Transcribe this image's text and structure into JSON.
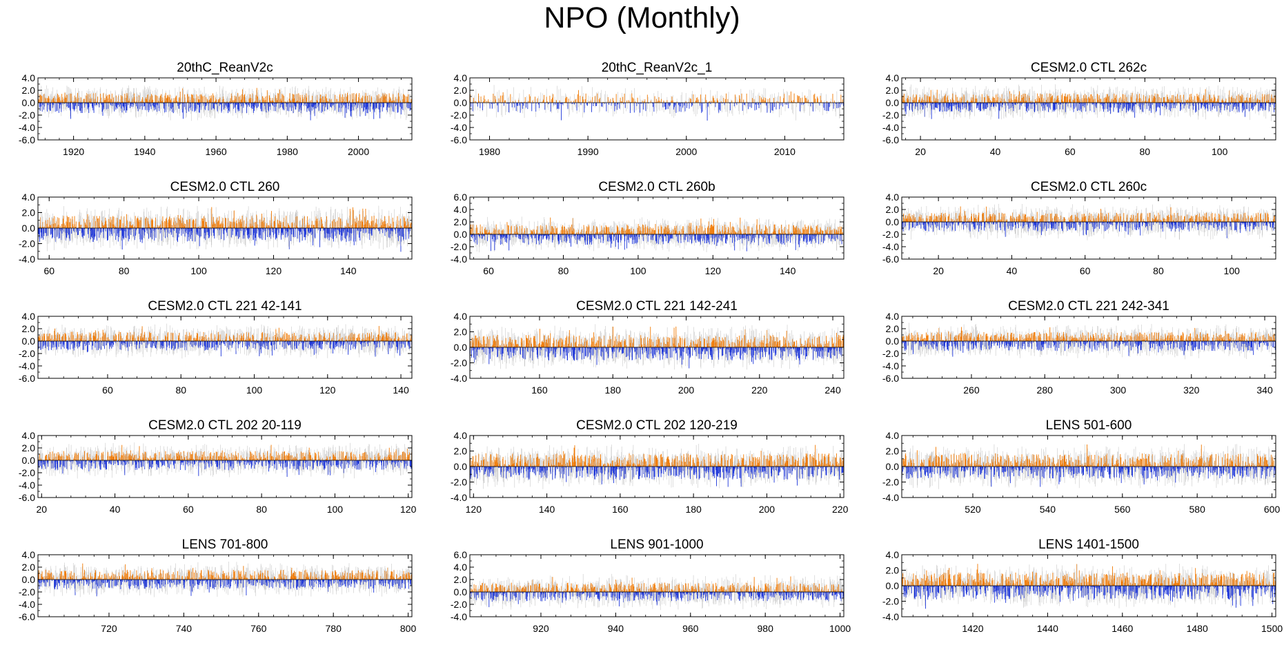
{
  "title": "NPO (Monthly)",
  "colors": {
    "positive": "#f07800",
    "negative": "#1a33d9",
    "unfiltered": "#c8c8c8",
    "frame": "#000000"
  },
  "chart_data": [
    {
      "type": "bar",
      "title": "20thC_ReanV2c",
      "xlim": [
        1910,
        2015
      ],
      "xticks": [
        "1920",
        "1940",
        "1960",
        "1980",
        "2000"
      ],
      "xtickvals": [
        1920,
        1940,
        1960,
        1980,
        2000
      ],
      "ylim": [
        -6,
        4
      ],
      "yticks": [
        "4.0",
        "2.0",
        "0.0",
        "-2.0",
        "-4.0",
        "-6.0"
      ],
      "ytickvals": [
        4,
        2,
        0,
        -2,
        -4,
        -6
      ],
      "months": 1260,
      "pos_amp": 1.6,
      "neg_amp": 1.7
    },
    {
      "type": "bar",
      "title": "20thC_ReanV2c_1",
      "xlim": [
        1978,
        2016
      ],
      "xticks": [
        "1980",
        "1990",
        "2000",
        "2010"
      ],
      "xtickvals": [
        1980,
        1990,
        2000,
        2010
      ],
      "ylim": [
        -6,
        4
      ],
      "yticks": [
        "4.0",
        "2.0",
        "0.0",
        "-2.0",
        "-4.0",
        "-6.0"
      ],
      "ytickvals": [
        4,
        2,
        0,
        -2,
        -4,
        -6
      ],
      "months": 456,
      "pos_amp": 1.5,
      "neg_amp": 1.7
    },
    {
      "type": "bar",
      "title": "CESM2.0 CTL 262c",
      "xlim": [
        15,
        115
      ],
      "xticks": [
        "20",
        "40",
        "60",
        "80",
        "100"
      ],
      "xtickvals": [
        20,
        40,
        60,
        80,
        100
      ],
      "ylim": [
        -6,
        4
      ],
      "yticks": [
        "4.0",
        "2.0",
        "0.0",
        "-2.0",
        "-4.0",
        "-6.0"
      ],
      "ytickvals": [
        4,
        2,
        0,
        -2,
        -4,
        -6
      ],
      "months": 1200,
      "pos_amp": 1.5,
      "neg_amp": 1.6
    },
    {
      "type": "bar",
      "title": "CESM2.0 CTL 260",
      "xlim": [
        57,
        157
      ],
      "xticks": [
        "60",
        "80",
        "100",
        "120",
        "140"
      ],
      "xtickvals": [
        60,
        80,
        100,
        120,
        140
      ],
      "ylim": [
        -4,
        4
      ],
      "yticks": [
        "4.0",
        "2.0",
        "0.0",
        "-2.0",
        "-4.0"
      ],
      "ytickvals": [
        4,
        2,
        0,
        -2,
        -4
      ],
      "months": 1200,
      "pos_amp": 1.6,
      "neg_amp": 1.8
    },
    {
      "type": "bar",
      "title": "CESM2.0 CTL 260b",
      "xlim": [
        55,
        155
      ],
      "xticks": [
        "60",
        "80",
        "100",
        "120",
        "140"
      ],
      "xtickvals": [
        60,
        80,
        100,
        120,
        140
      ],
      "ylim": [
        -4,
        6
      ],
      "yticks": [
        "6.0",
        "4.0",
        "2.0",
        "0.0",
        "-2.0",
        "-4.0"
      ],
      "ytickvals": [
        6,
        4,
        2,
        0,
        -2,
        -4
      ],
      "months": 1200,
      "pos_amp": 1.6,
      "neg_amp": 1.7
    },
    {
      "type": "bar",
      "title": "CESM2.0 CTL 260c",
      "xlim": [
        10,
        112
      ],
      "xticks": [
        "20",
        "40",
        "60",
        "80",
        "100"
      ],
      "xtickvals": [
        20,
        40,
        60,
        80,
        100
      ],
      "ylim": [
        -6,
        4
      ],
      "yticks": [
        "4.0",
        "2.0",
        "0.0",
        "-2.0",
        "-4.0",
        "-6.0"
      ],
      "ytickvals": [
        4,
        2,
        0,
        -2,
        -4,
        -6
      ],
      "months": 1200,
      "pos_amp": 1.5,
      "neg_amp": 1.6
    },
    {
      "type": "bar",
      "title": "CESM2.0 CTL 221 42-141",
      "xlim": [
        41,
        143
      ],
      "xticks": [
        "60",
        "80",
        "100",
        "120",
        "140"
      ],
      "xtickvals": [
        60,
        80,
        100,
        120,
        140
      ],
      "ylim": [
        -6,
        4
      ],
      "yticks": [
        "4.0",
        "2.0",
        "0.0",
        "-2.0",
        "-4.0",
        "-6.0"
      ],
      "ytickvals": [
        4,
        2,
        0,
        -2,
        -4,
        -6
      ],
      "months": 1200,
      "pos_amp": 1.5,
      "neg_amp": 1.5
    },
    {
      "type": "bar",
      "title": "CESM2.0 CTL 221 142-241",
      "xlim": [
        141,
        243
      ],
      "xticks": [
        "160",
        "180",
        "200",
        "220",
        "240"
      ],
      "xtickvals": [
        160,
        180,
        200,
        220,
        240
      ],
      "ylim": [
        -4,
        4
      ],
      "yticks": [
        "4.0",
        "2.0",
        "0.0",
        "-2.0",
        "-4.0"
      ],
      "ytickvals": [
        4,
        2,
        0,
        -2,
        -4
      ],
      "months": 1200,
      "pos_amp": 1.6,
      "neg_amp": 1.7
    },
    {
      "type": "bar",
      "title": "CESM2.0 CTL 221 242-341",
      "xlim": [
        241,
        343
      ],
      "xticks": [
        "260",
        "280",
        "300",
        "320",
        "340"
      ],
      "xtickvals": [
        260,
        280,
        300,
        320,
        340
      ],
      "ylim": [
        -6,
        4
      ],
      "yticks": [
        "4.0",
        "2.0",
        "0.0",
        "-2.0",
        "-4.0",
        "-6.0"
      ],
      "ytickvals": [
        4,
        2,
        0,
        -2,
        -4,
        -6
      ],
      "months": 1200,
      "pos_amp": 1.5,
      "neg_amp": 1.6
    },
    {
      "type": "bar",
      "title": "CESM2.0 CTL 202 20-119",
      "xlim": [
        19,
        121
      ],
      "xticks": [
        "20",
        "40",
        "60",
        "80",
        "100",
        "120"
      ],
      "xtickvals": [
        20,
        40,
        60,
        80,
        100,
        120
      ],
      "ylim": [
        -6,
        4
      ],
      "yticks": [
        "4.0",
        "2.0",
        "0.0",
        "-2.0",
        "-4.0",
        "-6.0"
      ],
      "ytickvals": [
        4,
        2,
        0,
        -2,
        -4,
        -6
      ],
      "months": 1200,
      "pos_amp": 1.5,
      "neg_amp": 1.6
    },
    {
      "type": "bar",
      "title": "CESM2.0 CTL 202 120-219",
      "xlim": [
        119,
        221
      ],
      "xticks": [
        "120",
        "140",
        "160",
        "180",
        "200",
        "220"
      ],
      "xtickvals": [
        120,
        140,
        160,
        180,
        200,
        220
      ],
      "ylim": [
        -4,
        4
      ],
      "yticks": [
        "4.0",
        "2.0",
        "0.0",
        "-2.0",
        "-4.0"
      ],
      "ytickvals": [
        4,
        2,
        0,
        -2,
        -4
      ],
      "months": 1200,
      "pos_amp": 1.7,
      "neg_amp": 1.7
    },
    {
      "type": "bar",
      "title": "LENS 501-600",
      "xlim": [
        501,
        601
      ],
      "xticks": [
        "520",
        "540",
        "560",
        "580",
        "600"
      ],
      "xtickvals": [
        520,
        540,
        560,
        580,
        600
      ],
      "ylim": [
        -4,
        4
      ],
      "yticks": [
        "4.0",
        "2.0",
        "0.0",
        "-2.0",
        "-4.0"
      ],
      "ytickvals": [
        4,
        2,
        0,
        -2,
        -4
      ],
      "months": 1200,
      "pos_amp": 1.7,
      "neg_amp": 1.6
    },
    {
      "type": "bar",
      "title": "LENS 701-800",
      "xlim": [
        701,
        801
      ],
      "xticks": [
        "720",
        "740",
        "760",
        "780",
        "800"
      ],
      "xtickvals": [
        720,
        740,
        760,
        780,
        800
      ],
      "ylim": [
        -6,
        4
      ],
      "yticks": [
        "4.0",
        "2.0",
        "0.0",
        "-2.0",
        "-4.0",
        "-6.0"
      ],
      "ytickvals": [
        4,
        2,
        0,
        -2,
        -4,
        -6
      ],
      "months": 1200,
      "pos_amp": 1.6,
      "neg_amp": 1.6
    },
    {
      "type": "bar",
      "title": "LENS 901-1000",
      "xlim": [
        901,
        1001
      ],
      "xticks": [
        "920",
        "940",
        "960",
        "980",
        "1000"
      ],
      "xtickvals": [
        920,
        940,
        960,
        980,
        1000
      ],
      "ylim": [
        -4,
        6
      ],
      "yticks": [
        "6.0",
        "4.0",
        "2.0",
        "0.0",
        "-2.0",
        "-4.0"
      ],
      "ytickvals": [
        6,
        4,
        2,
        0,
        -2,
        -4
      ],
      "months": 1200,
      "pos_amp": 1.5,
      "neg_amp": 1.5
    },
    {
      "type": "bar",
      "title": "LENS 1401-1500",
      "xlim": [
        1401,
        1501
      ],
      "xticks": [
        "1420",
        "1440",
        "1460",
        "1480",
        "1500"
      ],
      "xtickvals": [
        1420,
        1440,
        1460,
        1480,
        1500
      ],
      "ylim": [
        -4,
        4
      ],
      "yticks": [
        "4.0",
        "2.0",
        "0.0",
        "-2.0",
        "-4.0"
      ],
      "ytickvals": [
        4,
        2,
        0,
        -2,
        -4
      ],
      "months": 1200,
      "pos_amp": 1.7,
      "neg_amp": 1.8
    }
  ]
}
